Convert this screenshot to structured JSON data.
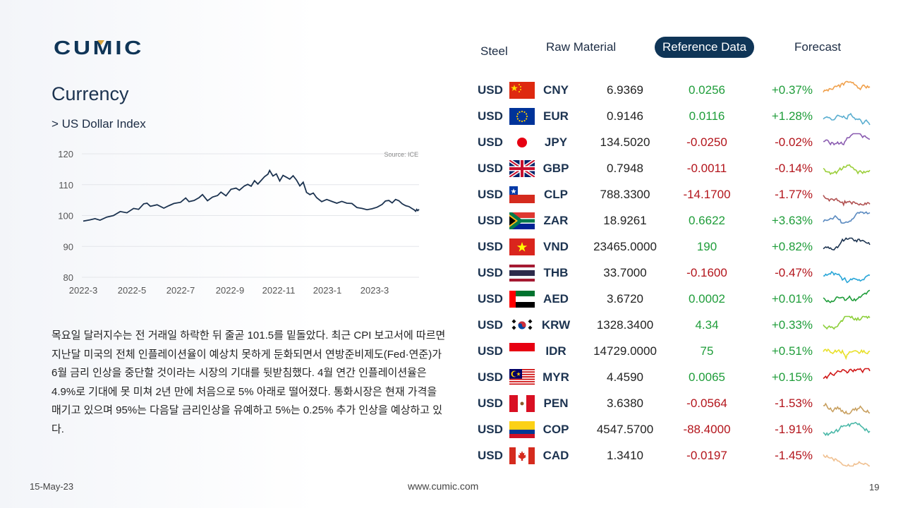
{
  "brand": {
    "logo_text": "CUMIC",
    "color": "#0f3557"
  },
  "nav": {
    "items": [
      {
        "label": "Steel",
        "active": false
      },
      {
        "label": "Raw Material",
        "active": false
      },
      {
        "label": "Reference Data",
        "active": true
      },
      {
        "label": "Forecast",
        "active": false
      }
    ]
  },
  "page": {
    "title": "Currency",
    "subtitle": "> US Dollar Index"
  },
  "chart_data": {
    "type": "line",
    "title": "",
    "source": "Source: ICE",
    "xlabel": "",
    "ylabel": "",
    "ylim": [
      80,
      120
    ],
    "yticks": [
      "120",
      "110",
      "100",
      "90",
      "80"
    ],
    "xticks": [
      "2022-3",
      "2022-5",
      "2022-7",
      "2022-9",
      "2022-11",
      "2023-1",
      "2023-3"
    ],
    "grid": "horizontal",
    "series": [
      {
        "color": "#1c3350",
        "points": [
          [
            0,
            98.2
          ],
          [
            0.02,
            98.6
          ],
          [
            0.035,
            99.0
          ],
          [
            0.05,
            98.5
          ],
          [
            0.07,
            99.5
          ],
          [
            0.09,
            100.0
          ],
          [
            0.11,
            101.3
          ],
          [
            0.13,
            100.9
          ],
          [
            0.15,
            102.3
          ],
          [
            0.165,
            102.0
          ],
          [
            0.18,
            103.8
          ],
          [
            0.19,
            104.0
          ],
          [
            0.2,
            103.0
          ],
          [
            0.22,
            103.5
          ],
          [
            0.24,
            102.4
          ],
          [
            0.255,
            103.2
          ],
          [
            0.27,
            103.9
          ],
          [
            0.29,
            104.3
          ],
          [
            0.305,
            105.7
          ],
          [
            0.315,
            104.5
          ],
          [
            0.33,
            104.9
          ],
          [
            0.345,
            105.8
          ],
          [
            0.355,
            106.8
          ],
          [
            0.37,
            104.8
          ],
          [
            0.385,
            106.0
          ],
          [
            0.4,
            106.5
          ],
          [
            0.41,
            107.6
          ],
          [
            0.425,
            106.4
          ],
          [
            0.44,
            108.5
          ],
          [
            0.455,
            108.9
          ],
          [
            0.465,
            108.2
          ],
          [
            0.48,
            109.6
          ],
          [
            0.49,
            110.1
          ],
          [
            0.5,
            109.5
          ],
          [
            0.51,
            111.3
          ],
          [
            0.52,
            110.2
          ],
          [
            0.53,
            111.4
          ],
          [
            0.54,
            112.6
          ],
          [
            0.55,
            113.4
          ],
          [
            0.555,
            114.6
          ],
          [
            0.565,
            112.8
          ],
          [
            0.575,
            113.5
          ],
          [
            0.585,
            111.2
          ],
          [
            0.595,
            113.0
          ],
          [
            0.605,
            112.4
          ],
          [
            0.615,
            111.8
          ],
          [
            0.625,
            112.9
          ],
          [
            0.635,
            111.5
          ],
          [
            0.645,
            109.6
          ],
          [
            0.655,
            110.8
          ],
          [
            0.665,
            107.5
          ],
          [
            0.675,
            106.8
          ],
          [
            0.685,
            107.3
          ],
          [
            0.695,
            105.8
          ],
          [
            0.71,
            104.5
          ],
          [
            0.725,
            105.2
          ],
          [
            0.74,
            104.6
          ],
          [
            0.755,
            104.0
          ],
          [
            0.77,
            104.6
          ],
          [
            0.785,
            104.0
          ],
          [
            0.8,
            103.9
          ],
          [
            0.815,
            102.6
          ],
          [
            0.83,
            102.3
          ],
          [
            0.845,
            101.9
          ],
          [
            0.86,
            102.2
          ],
          [
            0.875,
            102.7
          ],
          [
            0.89,
            103.6
          ],
          [
            0.9,
            104.7
          ],
          [
            0.91,
            104.9
          ],
          [
            0.92,
            104.1
          ],
          [
            0.93,
            105.2
          ],
          [
            0.94,
            104.8
          ],
          [
            0.95,
            103.8
          ],
          [
            0.96,
            103.2
          ],
          [
            0.97,
            102.9
          ],
          [
            0.98,
            102.2
          ],
          [
            0.985,
            101.9
          ],
          [
            0.99,
            101.4
          ],
          [
            0.993,
            102.0
          ],
          [
            0.996,
            101.6
          ],
          [
            1,
            102.0
          ]
        ]
      }
    ]
  },
  "body_text": "목요일 달러지수는 전 거래일 하락한 뒤 줄곧 101.5를 밑돌았다. 최근 CPI 보고서에 따르면 지난달 미국의 전체 인플레이션율이 예상치 못하게 둔화되면서 연방준비제도(Fed·연준)가 6월 금리 인상을 중단할 것이라는 시장의 기대를 뒷받침했다. 4월 연간 인플레이션율은 4.9%로 기대에 못 미쳐 2년 만에 처음으로 5% 아래로 떨어졌다. 통화시장은 현재 가격을 매기고 있으며 95%는 다음달 금리인상을 유예하고 5%는 0.25% 추가 인상을 예상하고 있다.",
  "currencies": [
    {
      "base": "USD",
      "flag": "cn-flag",
      "code": "CNY",
      "price": "6.9369",
      "change": "0.0256",
      "pct": "+0.37%",
      "dir": "up",
      "spark_color": "#f0a04b"
    },
    {
      "base": "USD",
      "flag": "eu-flag",
      "code": "EUR",
      "price": "0.9146",
      "change": "0.0116",
      "pct": "+1.28%",
      "dir": "up",
      "spark_color": "#5aaed0"
    },
    {
      "base": "USD",
      "flag": "jp-flag",
      "code": "JPY",
      "price": "134.5020",
      "change": "-0.0250",
      "pct": "-0.02%",
      "dir": "down",
      "spark_color": "#8a5bb0"
    },
    {
      "base": "USD",
      "flag": "gb-flag",
      "code": "GBP",
      "price": "0.7948",
      "change": "-0.0011",
      "pct": "-0.14%",
      "dir": "down",
      "spark_color": "#9ccf3c"
    },
    {
      "base": "USD",
      "flag": "cl-flag",
      "code": "CLP",
      "price": "788.3300",
      "change": "-14.1700",
      "pct": "-1.77%",
      "dir": "down",
      "spark_color": "#b05050"
    },
    {
      "base": "USD",
      "flag": "za-flag",
      "code": "ZAR",
      "price": "18.9261",
      "change": "0.6622",
      "pct": "+3.63%",
      "dir": "up",
      "spark_color": "#5a8ac0"
    },
    {
      "base": "USD",
      "flag": "vn-flag",
      "code": "VND",
      "price": "23465.0000",
      "change": "190",
      "pct": "+0.82%",
      "dir": "up",
      "spark_color": "#1c3350"
    },
    {
      "base": "USD",
      "flag": "th-flag",
      "code": "THB",
      "price": "33.7000",
      "change": "-0.1600",
      "pct": "-0.47%",
      "dir": "down",
      "spark_color": "#2aa6d8"
    },
    {
      "base": "USD",
      "flag": "ae-flag",
      "code": "AED",
      "price": "3.6720",
      "change": "0.0002",
      "pct": "+0.01%",
      "dir": "up",
      "spark_color": "#1f9d3a"
    },
    {
      "base": "USD",
      "flag": "kr-flag",
      "code": "KRW",
      "price": "1328.3400",
      "change": "4.34",
      "pct": "+0.33%",
      "dir": "up",
      "spark_color": "#8ccf3a"
    },
    {
      "base": "USD",
      "flag": "id-flag",
      "code": "IDR",
      "price": "14729.0000",
      "change": "75",
      "pct": "+0.51%",
      "dir": "up",
      "spark_color": "#e8e02a"
    },
    {
      "base": "USD",
      "flag": "my-flag",
      "code": "MYR",
      "price": "4.4590",
      "change": "0.0065",
      "pct": "+0.15%",
      "dir": "up",
      "spark_color": "#d01818"
    },
    {
      "base": "USD",
      "flag": "pe-flag",
      "code": "PEN",
      "price": "3.6380",
      "change": "-0.0564",
      "pct": "-1.53%",
      "dir": "down",
      "spark_color": "#c8a060"
    },
    {
      "base": "USD",
      "flag": "co-flag",
      "code": "COP",
      "price": "4547.5700",
      "change": "-88.4000",
      "pct": "-1.91%",
      "dir": "down",
      "spark_color": "#4ab8a8"
    },
    {
      "base": "USD",
      "flag": "ca-flag",
      "code": "CAD",
      "price": "1.3410",
      "change": "-0.0197",
      "pct": "-1.45%",
      "dir": "down",
      "spark_color": "#f0c090"
    }
  ],
  "footer": {
    "date": "15-May-23",
    "url": "www.cumic.com",
    "page": "19"
  }
}
